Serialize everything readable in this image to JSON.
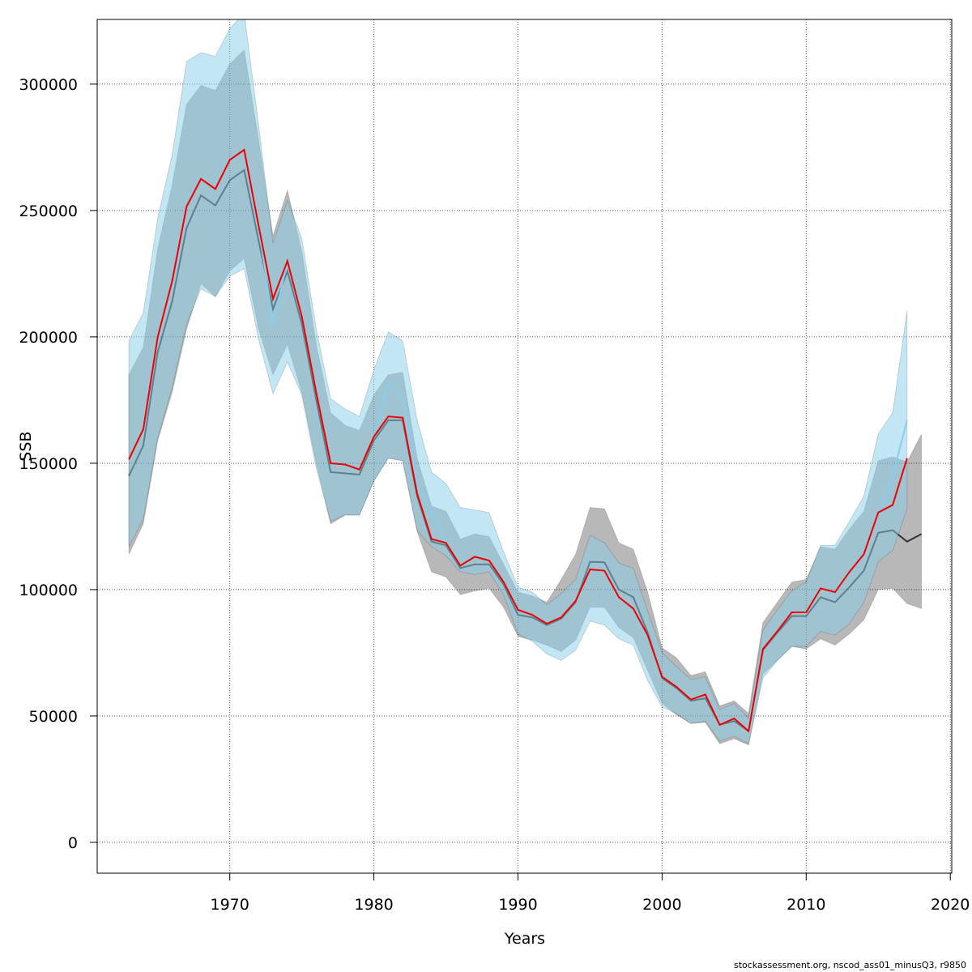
{
  "chart_data": {
    "type": "line",
    "x_label": "Years",
    "y_label": "SSB",
    "footnote": "stockassessment.org, nscod_ass01_minusQ3, r9850",
    "x": [
      1963,
      1964,
      1965,
      1966,
      1967,
      1968,
      1969,
      1970,
      1971,
      1972,
      1973,
      1974,
      1975,
      1976,
      1977,
      1978,
      1979,
      1980,
      1981,
      1982,
      1983,
      1984,
      1985,
      1986,
      1987,
      1988,
      1989,
      1990,
      1991,
      1992,
      1993,
      1994,
      1995,
      1996,
      1997,
      1998,
      1999,
      2000,
      2001,
      2002,
      2003,
      2004,
      2005,
      2006,
      2007,
      2008,
      2009,
      2010,
      2011,
      2012,
      2013,
      2014,
      2015,
      2016,
      2017,
      2018
    ],
    "xlim": [
      1960.8,
      2020.1
    ],
    "ylim": [
      -12200,
      325600
    ],
    "xticks": [
      1970,
      1980,
      1990,
      2000,
      2010,
      2020
    ],
    "yticks": [
      0,
      50000,
      100000,
      150000,
      200000,
      250000,
      300000
    ],
    "grid": true,
    "bands": [
      {
        "color": "rgba(0,0,0,0.28)",
        "high": [
          185000,
          196000,
          235000,
          260000,
          292000,
          299500,
          297500,
          308000,
          313500,
          278000,
          240000,
          258000,
          234000,
          197000,
          170000,
          165000,
          163000,
          177000,
          185000,
          186000,
          152000,
          133000,
          131000,
          120000,
          122000,
          121000,
          110000,
          99000,
          97500,
          95000,
          104000,
          114000,
          132500,
          132000,
          118500,
          116000,
          99000,
          77000,
          73000,
          66000,
          67500,
          54000,
          56000,
          51000,
          87000,
          95000,
          103000,
          104000,
          117000,
          116000,
          124000,
          131000,
          151000,
          152500,
          150500,
          161500
        ],
        "low": [
          114000,
          126000,
          159000,
          178000,
          203000,
          221000,
          216000,
          226000,
          231000,
          203000,
          185000,
          197000,
          178000,
          150000,
          126000,
          129500,
          129500,
          143000,
          152000,
          151000,
          123000,
          107000,
          105000,
          98000,
          99500,
          100500,
          93000,
          81500,
          80000,
          78000,
          75500,
          80000,
          93000,
          93000,
          85000,
          81000,
          68000,
          55000,
          50500,
          47000,
          47500,
          39000,
          41000,
          38500,
          66500,
          72000,
          77500,
          76500,
          80500,
          78000,
          82500,
          88000,
          100000,
          100500,
          94500,
          92500
        ]
      },
      {
        "color": "rgba(135,206,235,0.5)",
        "high": [
          198500,
          209500,
          247000,
          272000,
          309000,
          312500,
          311000,
          322000,
          328000,
          284000,
          237000,
          254000,
          239000,
          203000,
          175500,
          171500,
          168500,
          187000,
          202000,
          198500,
          167000,
          146500,
          142000,
          132500,
          131500,
          130500,
          115000,
          101000,
          99000,
          94000,
          98500,
          104000,
          121500,
          118500,
          110500,
          108500,
          91500,
          75000,
          69500,
          64500,
          65500,
          52500,
          55000,
          49000,
          84000,
          92000,
          99500,
          103000,
          117500,
          117500,
          127000,
          137000,
          161500,
          170000,
          210500,
          null
        ],
        "low": [
          117000,
          128000,
          160000,
          180000,
          205000,
          219000,
          216000,
          224000,
          227000,
          199000,
          177500,
          190000,
          177000,
          148000,
          127000,
          129500,
          129500,
          143000,
          152000,
          151000,
          123500,
          117000,
          113500,
          107000,
          106000,
          107000,
          98000,
          82500,
          79500,
          74500,
          72000,
          76000,
          87500,
          86000,
          80500,
          78000,
          64000,
          53500,
          51000,
          47000,
          48000,
          40000,
          42000,
          39000,
          65000,
          72000,
          77500,
          77500,
          83500,
          82000,
          86500,
          95000,
          111000,
          115500,
          132000,
          null
        ]
      }
    ],
    "series": [
      {
        "color": "#333333",
        "values": [
          145000,
          157000,
          194000,
          214000,
          243000,
          256000,
          252000,
          262000,
          266000,
          238000,
          211000,
          226000,
          205000,
          175000,
          146500,
          146000,
          145500,
          159000,
          167000,
          167000,
          137000,
          119000,
          117500,
          108500,
          110000,
          110000,
          102000,
          90000,
          89000,
          86000,
          88500,
          95000,
          111000,
          110800,
          100000,
          97000,
          83000,
          65000,
          61000,
          56000,
          57000,
          46500,
          48000,
          44000,
          76000,
          83000,
          89500,
          89500,
          97000,
          95000,
          101000,
          107500,
          122500,
          123500,
          119000,
          122000
        ]
      },
      {
        "color": "#87ceeb",
        "values": [
          151500,
          163500,
          200000,
          222000,
          251500,
          262500,
          258500,
          270000,
          274000,
          244000,
          205000,
          230000,
          208000,
          178000,
          150000,
          149500,
          147500,
          160500,
          182000,
          176000,
          142000,
          131000,
          118500,
          109500,
          113000,
          111500,
          103000,
          92000,
          90000,
          86500,
          89000,
          95500,
          108000,
          107500,
          97000,
          92500,
          82000,
          65500,
          61500,
          56500,
          58500,
          46500,
          49000,
          44000,
          76500,
          83500,
          91000,
          91000,
          100500,
          99000,
          107000,
          114000,
          130000,
          145000,
          167000,
          null
        ]
      },
      {
        "color": "#ee0000",
        "values": [
          151500,
          163500,
          200000,
          222000,
          251500,
          262500,
          258500,
          270000,
          274000,
          244000,
          215000,
          230000,
          208000,
          178000,
          150000,
          149500,
          147500,
          160500,
          168500,
          168000,
          138000,
          120000,
          118500,
          109500,
          113000,
          111500,
          103000,
          92000,
          90000,
          86500,
          89000,
          95500,
          108000,
          107500,
          97000,
          92500,
          82000,
          65500,
          61500,
          56500,
          58500,
          46500,
          49000,
          44000,
          76500,
          83500,
          91000,
          91000,
          100500,
          99000,
          107000,
          114000,
          130500,
          133500,
          152000,
          null
        ]
      }
    ]
  }
}
